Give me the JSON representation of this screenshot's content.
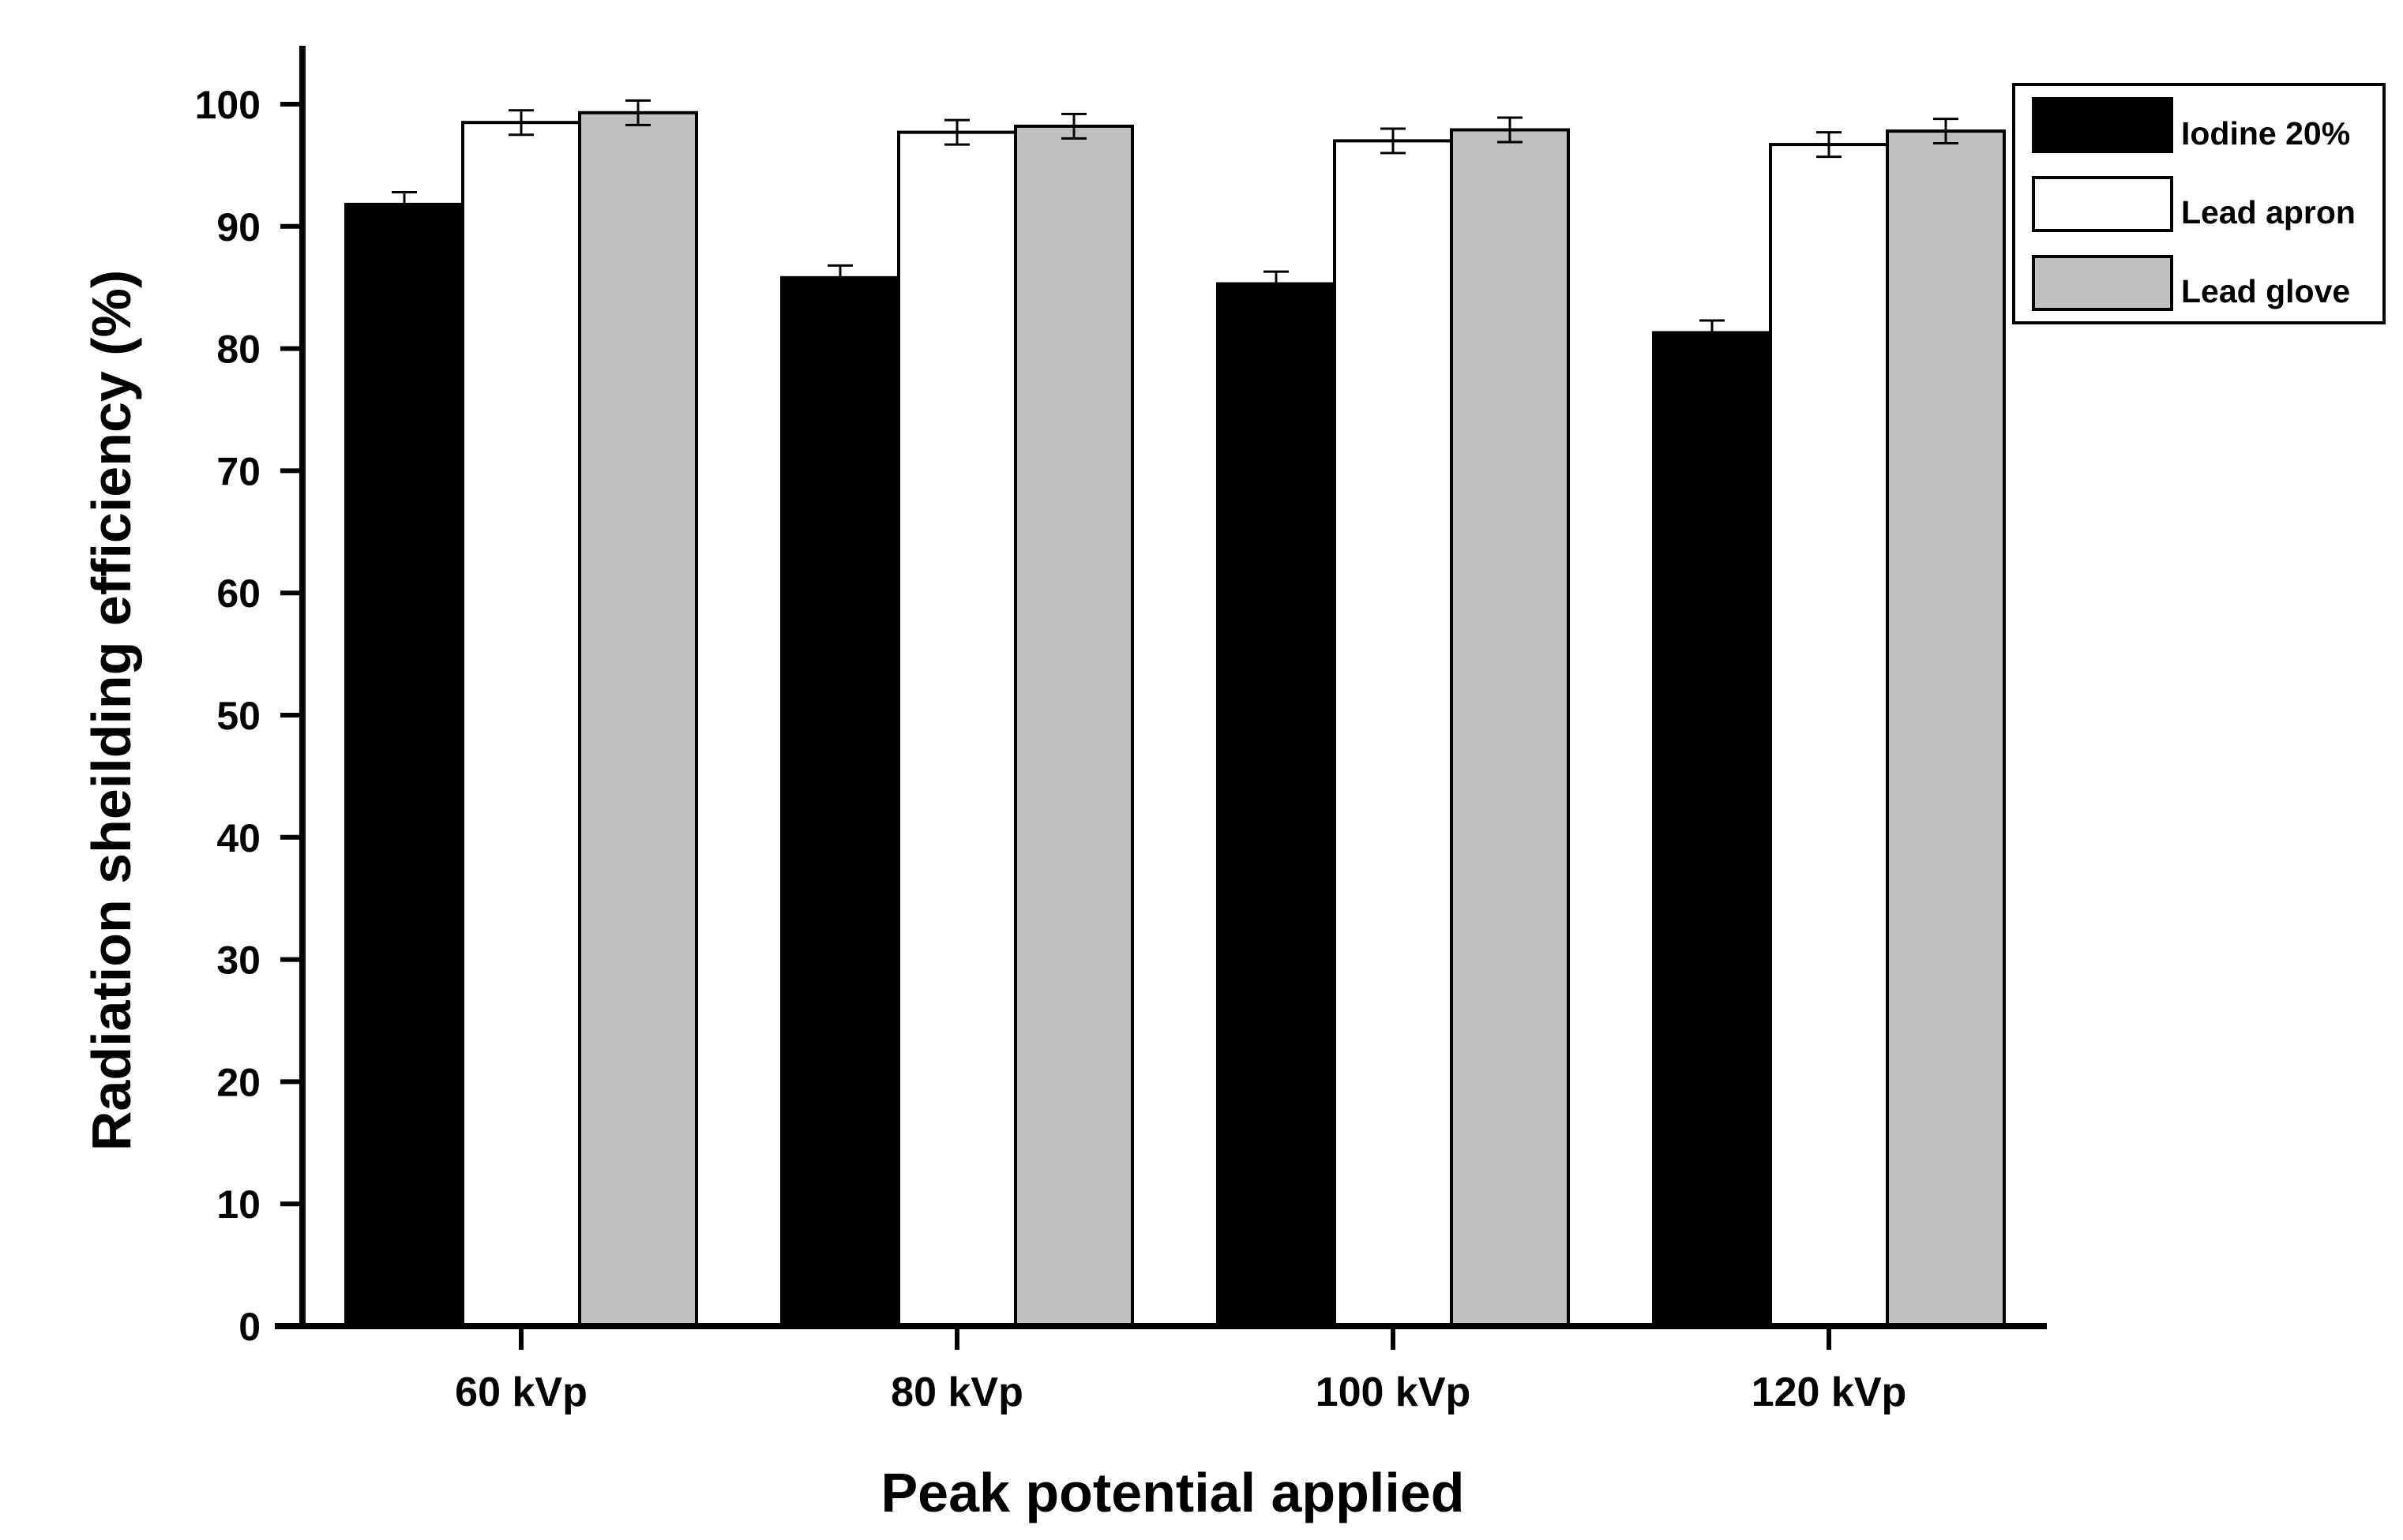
{
  "chart_data": {
    "type": "bar",
    "title": "",
    "xlabel": "Peak potential applied",
    "ylabel": "Radiation sheilding efficiency (%)",
    "categories": [
      "60 kVp",
      "80 kVp",
      "100 kVp",
      "120 kVp"
    ],
    "ylim": [
      0,
      105
    ],
    "yticks": [
      0,
      10,
      20,
      30,
      40,
      50,
      60,
      70,
      80,
      90,
      100
    ],
    "grid": false,
    "legend_position": "top-right",
    "series": [
      {
        "name": "Iodine 20%",
        "color": "#000000",
        "values": [
          91.8,
          85.8,
          85.3,
          81.3
        ],
        "errors": [
          1.0,
          1.0,
          1.0,
          1.0
        ]
      },
      {
        "name": "Lead apron",
        "color": "#ffffff",
        "values": [
          98.5,
          97.7,
          97.0,
          96.7
        ],
        "errors": [
          1.0,
          1.0,
          1.0,
          1.0
        ]
      },
      {
        "name": "Lead glove",
        "color": "#c0c0c0",
        "values": [
          99.3,
          98.2,
          97.9,
          97.8
        ],
        "errors": [
          1.0,
          1.0,
          1.0,
          1.0
        ]
      }
    ]
  }
}
